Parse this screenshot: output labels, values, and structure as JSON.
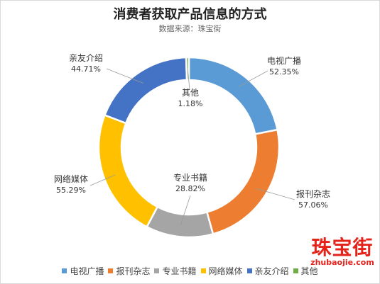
{
  "chart_data": {
    "type": "pie",
    "title": "消费者获取产品信息的方式",
    "subtitle": "数据来源：珠宝街",
    "categories": [
      "电视广播",
      "报刊杂志",
      "专业书籍",
      "网络媒体",
      "亲友介绍",
      "其他"
    ],
    "values": [
      52.35,
      57.06,
      28.82,
      55.29,
      44.71,
      1.18
    ],
    "labels": [
      "52.35%",
      "57.06%",
      "28.82%",
      "55.29%",
      "44.71%",
      "1.18%"
    ],
    "colors": [
      "#5b9bd5",
      "#ed7d31",
      "#a5a5a5",
      "#ffc000",
      "#4472c4",
      "#70ad47"
    ],
    "legend_position": "bottom",
    "donut": true
  },
  "watermark": {
    "main": "珠宝街",
    "sub": "zhubaojie.com"
  }
}
